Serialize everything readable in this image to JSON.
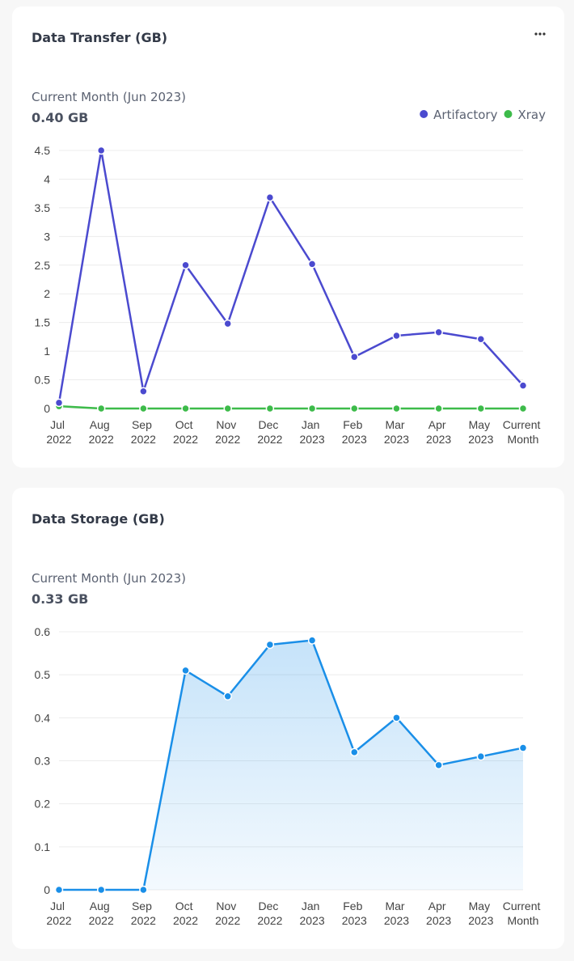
{
  "chart_data": [
    {
      "type": "line",
      "title": "Data Transfer (GB)",
      "subtitle": "Current Month (Jun 2023)",
      "current_value": "0.40 GB",
      "categories": [
        "Jul 2022",
        "Aug 2022",
        "Sep 2022",
        "Oct 2022",
        "Nov 2022",
        "Dec 2022",
        "Jan 2023",
        "Feb 2023",
        "Mar 2023",
        "Apr 2023",
        "May 2023",
        "Current Month"
      ],
      "series": [
        {
          "name": "Artifactory",
          "color": "#4b4acf",
          "values": [
            0.1,
            4.5,
            0.3,
            2.5,
            1.48,
            3.68,
            2.52,
            0.9,
            1.27,
            1.33,
            1.21,
            0.4
          ]
        },
        {
          "name": "Xray",
          "color": "#3dbb4a",
          "values": [
            0.04,
            0,
            0,
            0,
            0,
            0,
            0,
            0,
            0,
            0,
            0,
            0
          ]
        }
      ],
      "ylim": [
        0,
        4.5
      ],
      "yticks": [
        0,
        0.5,
        1,
        1.5,
        2,
        2.5,
        3,
        3.5,
        4,
        4.5
      ],
      "grid": true,
      "legend": "top-right"
    },
    {
      "type": "area",
      "title": "Data Storage (GB)",
      "subtitle": "Current Month (Jun 2023)",
      "current_value": "0.33 GB",
      "categories": [
        "Jul 2022",
        "Aug 2022",
        "Sep 2022",
        "Oct 2022",
        "Nov 2022",
        "Dec 2022",
        "Jan 2023",
        "Feb 2023",
        "Mar 2023",
        "Apr 2023",
        "May 2023",
        "Current Month"
      ],
      "color": "#1a8fe8",
      "values": [
        0,
        0,
        0,
        0.51,
        0.45,
        0.57,
        0.58,
        0.32,
        0.4,
        0.29,
        0.31,
        0.33
      ],
      "ylim": [
        0,
        0.6
      ],
      "yticks": [
        0,
        0.1,
        0.2,
        0.3,
        0.4,
        0.5,
        0.6
      ],
      "grid": true
    }
  ]
}
